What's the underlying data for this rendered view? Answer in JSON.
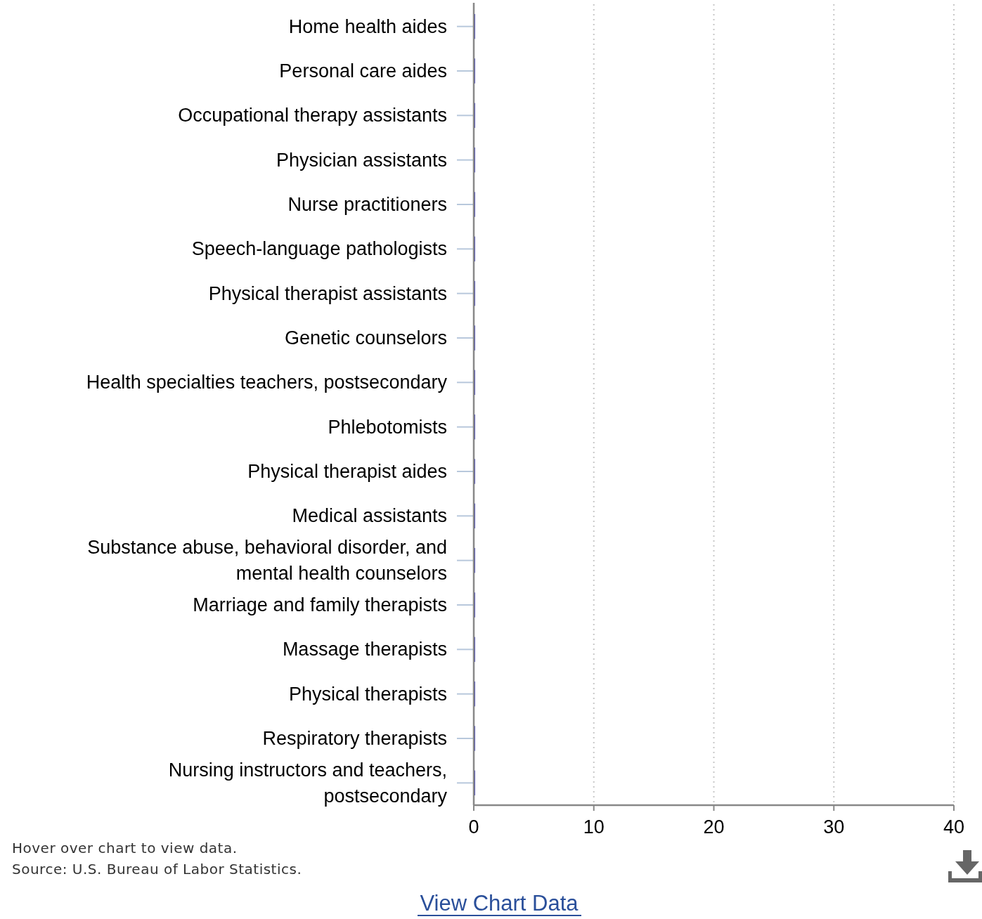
{
  "chart_data": {
    "type": "bar",
    "orientation": "horizontal",
    "categories": [
      "Home health aides",
      "Personal care aides",
      "Occupational therapy assistants",
      "Physician assistants",
      "Nurse practitioners",
      "Speech-language pathologists",
      "Physical therapist assistants",
      "Genetic counselors",
      "Health specialties teachers, postsecondary",
      "Phlebotomists",
      "Physical therapist aides",
      "Medical assistants",
      "Substance abuse, behavioral disorder, and mental health counselors",
      "Marriage and family therapists",
      "Massage therapists",
      "Physical therapists",
      "Respiratory therapists",
      "Nursing instructors and teachers, postsecondary"
    ],
    "values": [
      0.1,
      0.1,
      0.1,
      0.1,
      0.1,
      0.1,
      0.1,
      0.1,
      0.1,
      0.1,
      0.1,
      0.1,
      0.1,
      0.1,
      0.1,
      0.1,
      0.1,
      0.1
    ],
    "color": "#0000aa",
    "xlim": [
      0,
      40
    ],
    "xticks": [
      0,
      10,
      20,
      30,
      40
    ],
    "grid": "x",
    "annotations": [
      "Hover over chart to view data.",
      "Source: U.S. Bureau of Labor Statistics.",
      "View Chart Data"
    ]
  }
}
